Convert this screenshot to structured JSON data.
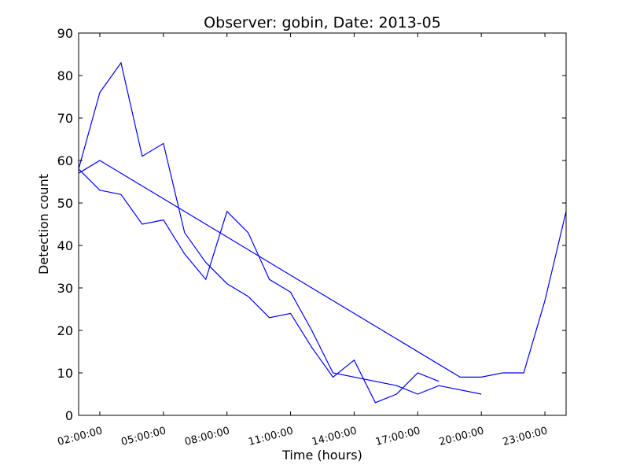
{
  "chart_data": {
    "type": "line",
    "title": "Observer: gobin, Date: 2013-05",
    "xlabel": "Time (hours)",
    "ylabel": "Detection count",
    "ylim": [
      0,
      90
    ],
    "xlim": [
      "01:00:00",
      "24:00:00"
    ],
    "grid": false,
    "legend": "none",
    "color": "#0000ff",
    "yticks": [
      "0",
      "10",
      "20",
      "30",
      "40",
      "50",
      "60",
      "70",
      "80",
      "90"
    ],
    "xticks": [
      "02:00:00",
      "05:00:00",
      "08:00:00",
      "11:00:00",
      "14:00:00",
      "17:00:00",
      "20:00:00",
      "23:00:00"
    ],
    "series": [
      {
        "x": [
          "01:00:00",
          "02:00:00",
          "03:00:00",
          "04:00:00",
          "05:00:00",
          "06:00:00",
          "07:00:00",
          "08:00:00",
          "09:00:00",
          "10:00:00",
          "11:00:00",
          "12:00:00",
          "13:00:00",
          "14:00:00",
          "15:00:00",
          "16:00:00",
          "17:00:00",
          "18:00:00"
        ],
        "y": [
          58,
          76,
          83,
          61,
          64,
          43,
          36,
          31,
          28,
          23,
          24,
          16,
          9,
          13,
          3,
          5,
          10,
          8
        ]
      },
      {
        "x": [
          "01:00:00",
          "02:00:00",
          "03:00:00",
          "04:00:00",
          "05:00:00",
          "06:00:00",
          "07:00:00",
          "08:00:00",
          "09:00:00",
          "10:00:00",
          "11:00:00",
          "12:00:00",
          "13:00:00",
          "16:00:00",
          "17:00:00",
          "18:00:00",
          "20:00:00"
        ],
        "y": [
          58,
          53,
          52,
          45,
          46,
          38,
          32,
          48,
          43,
          32,
          29,
          20,
          10,
          7,
          5,
          7,
          5
        ]
      },
      {
        "x": [
          "01:00:00",
          "02:00:00",
          "19:00:00",
          "20:00:00",
          "21:00:00",
          "22:00:00",
          "23:00:00",
          "24:00:00"
        ],
        "y": [
          57,
          60,
          9,
          9,
          10,
          10,
          27,
          48
        ]
      }
    ]
  }
}
